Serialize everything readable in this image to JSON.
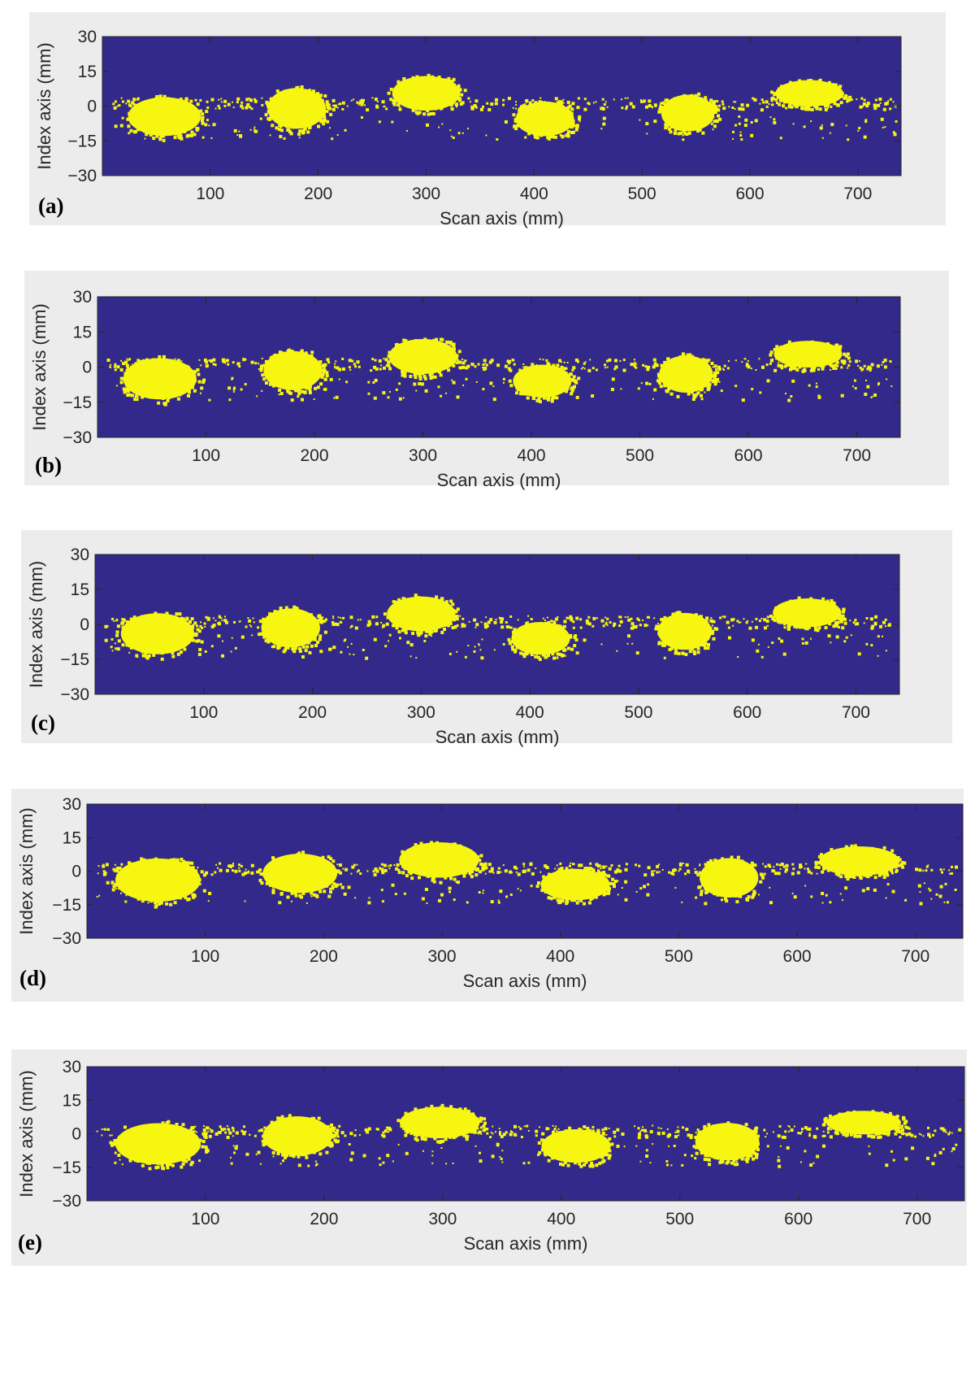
{
  "colors": {
    "background": "#33298a",
    "blob": "#f6f60f",
    "panel_bg": "#ececec",
    "text": "#262626"
  },
  "chart_data": [
    {
      "type": "heatmap",
      "panel_label": "(a)",
      "xlabel": "Scan axis (mm)",
      "ylabel": "Index axis (mm)",
      "xlim": [
        0,
        740
      ],
      "ylim": [
        -30,
        30
      ],
      "x_ticks": [
        100,
        200,
        300,
        400,
        500,
        600,
        700
      ],
      "y_ticks": [
        30,
        15,
        0,
        -15,
        -30
      ],
      "blobs": [
        {
          "x_range": [
            20,
            95
          ],
          "y_range": [
            -14,
            5
          ]
        },
        {
          "x_range": [
            150,
            210
          ],
          "y_range": [
            -11,
            9
          ]
        },
        {
          "x_range": [
            265,
            335
          ],
          "y_range": [
            -3,
            14
          ]
        },
        {
          "x_range": [
            380,
            440
          ],
          "y_range": [
            -14,
            3
          ]
        },
        {
          "x_range": [
            515,
            570
          ],
          "y_range": [
            -12,
            6
          ]
        },
        {
          "x_range": [
            620,
            690
          ],
          "y_range": [
            -1,
            12
          ]
        }
      ]
    },
    {
      "type": "heatmap",
      "panel_label": "(b)",
      "xlabel": "Scan axis (mm)",
      "ylabel": "Index axis (mm)",
      "xlim": [
        0,
        740
      ],
      "ylim": [
        -30,
        30
      ],
      "x_ticks": [
        100,
        200,
        300,
        400,
        500,
        600,
        700
      ],
      "y_ticks": [
        30,
        15,
        0,
        -15,
        -30
      ],
      "blobs": [
        {
          "x_range": [
            20,
            95
          ],
          "y_range": [
            -15,
            5
          ]
        },
        {
          "x_range": [
            150,
            210
          ],
          "y_range": [
            -11,
            8
          ]
        },
        {
          "x_range": [
            265,
            335
          ],
          "y_range": [
            -4,
            13
          ]
        },
        {
          "x_range": [
            380,
            440
          ],
          "y_range": [
            -14,
            2
          ]
        },
        {
          "x_range": [
            515,
            570
          ],
          "y_range": [
            -12,
            6
          ]
        },
        {
          "x_range": [
            620,
            690
          ],
          "y_range": [
            -1,
            12
          ]
        }
      ]
    },
    {
      "type": "heatmap",
      "panel_label": "(c)",
      "xlabel": "Scan axis (mm)",
      "ylabel": "Index axis (mm)",
      "xlim": [
        0,
        740
      ],
      "ylim": [
        -30,
        30
      ],
      "x_ticks": [
        100,
        200,
        300,
        400,
        500,
        600,
        700
      ],
      "y_ticks": [
        30,
        15,
        0,
        -15,
        -30
      ],
      "blobs": [
        {
          "x_range": [
            20,
            95
          ],
          "y_range": [
            -14,
            6
          ]
        },
        {
          "x_range": [
            150,
            210
          ],
          "y_range": [
            -11,
            8
          ]
        },
        {
          "x_range": [
            265,
            335
          ],
          "y_range": [
            -4,
            13
          ]
        },
        {
          "x_range": [
            380,
            440
          ],
          "y_range": [
            -14,
            2
          ]
        },
        {
          "x_range": [
            515,
            570
          ],
          "y_range": [
            -12,
            6
          ]
        },
        {
          "x_range": [
            620,
            690
          ],
          "y_range": [
            -2,
            12
          ]
        }
      ]
    },
    {
      "type": "heatmap",
      "panel_label": "(d)",
      "xlabel": "Scan axis (mm)",
      "ylabel": "Index axis (mm)",
      "xlim": [
        0,
        740
      ],
      "ylim": [
        -30,
        30
      ],
      "x_ticks": [
        100,
        200,
        300,
        400,
        500,
        600,
        700
      ],
      "y_ticks": [
        30,
        15,
        0,
        -15,
        -30
      ],
      "blobs": [
        {
          "x_range": [
            20,
            100
          ],
          "y_range": [
            -15,
            7
          ]
        },
        {
          "x_range": [
            145,
            215
          ],
          "y_range": [
            -11,
            9
          ]
        },
        {
          "x_range": [
            260,
            335
          ],
          "y_range": [
            -4,
            14
          ]
        },
        {
          "x_range": [
            380,
            445
          ],
          "y_range": [
            -14,
            2
          ]
        },
        {
          "x_range": [
            515,
            570
          ],
          "y_range": [
            -13,
            7
          ]
        },
        {
          "x_range": [
            615,
            690
          ],
          "y_range": [
            -3,
            12
          ]
        }
      ]
    },
    {
      "type": "heatmap",
      "panel_label": "(e)",
      "xlabel": "Scan axis (mm)",
      "ylabel": "Index axis (mm)",
      "xlim": [
        0,
        740
      ],
      "ylim": [
        -30,
        30
      ],
      "x_ticks": [
        100,
        200,
        300,
        400,
        500,
        600,
        700
      ],
      "y_ticks": [
        30,
        15,
        0,
        -15,
        -30
      ],
      "blobs": [
        {
          "x_range": [
            20,
            100
          ],
          "y_range": [
            -15,
            6
          ]
        },
        {
          "x_range": [
            145,
            210
          ],
          "y_range": [
            -11,
            9
          ]
        },
        {
          "x_range": [
            260,
            335
          ],
          "y_range": [
            -3,
            13
          ]
        },
        {
          "x_range": [
            380,
            445
          ],
          "y_range": [
            -14,
            3
          ]
        },
        {
          "x_range": [
            510,
            570
          ],
          "y_range": [
            -13,
            6
          ]
        },
        {
          "x_range": [
            620,
            690
          ],
          "y_range": [
            -1,
            11
          ]
        }
      ]
    }
  ]
}
